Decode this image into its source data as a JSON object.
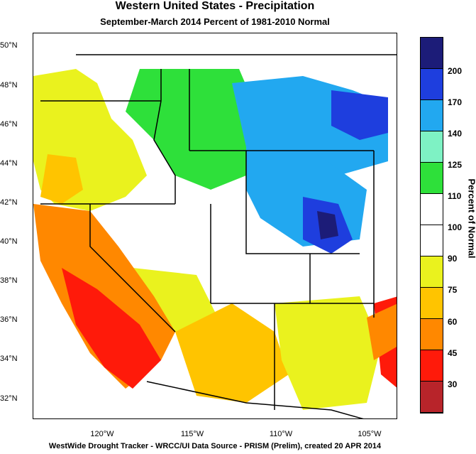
{
  "title": "Western United States - Precipitation",
  "subtitle": "September-March 2014  Percent of 1981-2010 Normal",
  "footer": "WestWide Drought Tracker - WRCC/UI  Data Source - PRISM (Prelim), created 20 APR 2014",
  "legend_title": "Percent of Normal",
  "legend": {
    "ticks": [
      "200",
      "170",
      "140",
      "125",
      "110",
      "100",
      "90",
      "75",
      "60",
      "45",
      "30"
    ],
    "colors": [
      "#1c1c78",
      "#1e3ede",
      "#22a8f0",
      "#7ef2c4",
      "#2ee03a",
      "#ffffff",
      "#ffffff",
      "#eaf21e",
      "#ffc400",
      "#ff8800",
      "#ff1a0a",
      "#b8242a"
    ]
  },
  "lat_labels": [
    "50°N",
    "48°N",
    "46°N",
    "44°N",
    "42°N",
    "40°N",
    "38°N",
    "36°N",
    "34°N",
    "32°N"
  ],
  "lon_labels": [
    "120°W",
    "115°W",
    "110°W",
    "105°W"
  ],
  "map": {
    "lon_range": [
      -124.5,
      -102.8
    ],
    "lat_range": [
      31.2,
      50.5
    ]
  }
}
